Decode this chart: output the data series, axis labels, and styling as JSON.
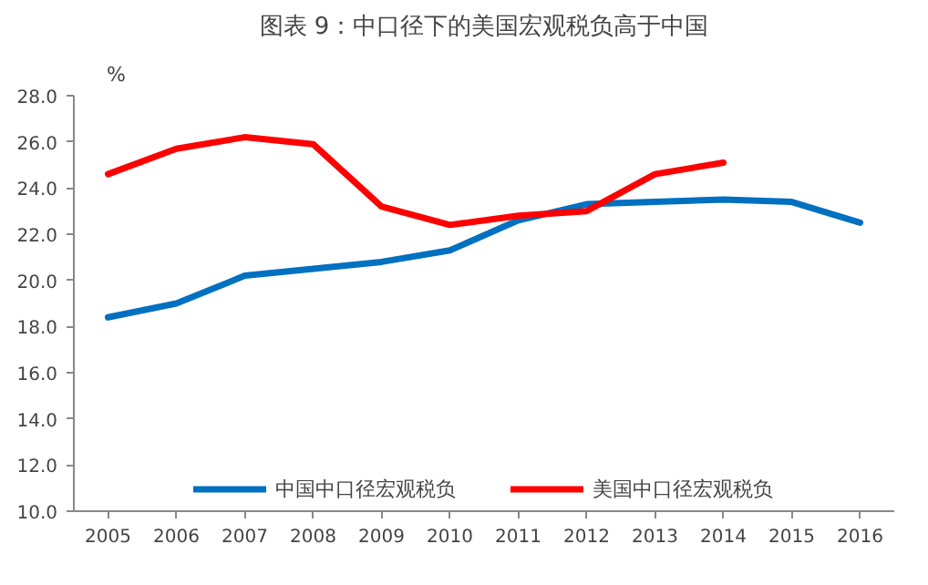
{
  "chart_data": {
    "type": "line",
    "title": "图表 9：中口径下的美国宏观税负高于中国",
    "ylabel": "%",
    "categories": [
      "2005",
      "2006",
      "2007",
      "2008",
      "2009",
      "2010",
      "2011",
      "2012",
      "2013",
      "2014",
      "2015",
      "2016"
    ],
    "series": [
      {
        "name": "中国中口径宏观税负",
        "color": "#0070c0",
        "values": [
          18.4,
          19.0,
          20.2,
          20.5,
          20.8,
          21.3,
          22.6,
          23.3,
          23.4,
          23.5,
          23.4,
          22.5
        ]
      },
      {
        "name": "美国中口径宏观税负",
        "color": "#ff0000",
        "values": [
          24.6,
          25.7,
          26.2,
          25.9,
          23.2,
          22.4,
          22.8,
          23.0,
          24.6,
          25.1,
          null,
          null
        ]
      }
    ],
    "ylim": [
      10,
      28
    ],
    "yticks": [
      {
        "value": 10,
        "label": "10.0"
      },
      {
        "value": 12,
        "label": "12.0"
      },
      {
        "value": 14,
        "label": "14.0"
      },
      {
        "value": 16,
        "label": "16.0"
      },
      {
        "value": 18,
        "label": "18.0"
      },
      {
        "value": 20,
        "label": "20.0"
      },
      {
        "value": 22,
        "label": "22.0"
      },
      {
        "value": 24,
        "label": "24.0"
      },
      {
        "value": 26,
        "label": "26.0"
      },
      {
        "value": 28,
        "label": "28.0"
      }
    ],
    "legend": "bottom",
    "grid": false,
    "marker": "none",
    "line_style": "solid"
  }
}
